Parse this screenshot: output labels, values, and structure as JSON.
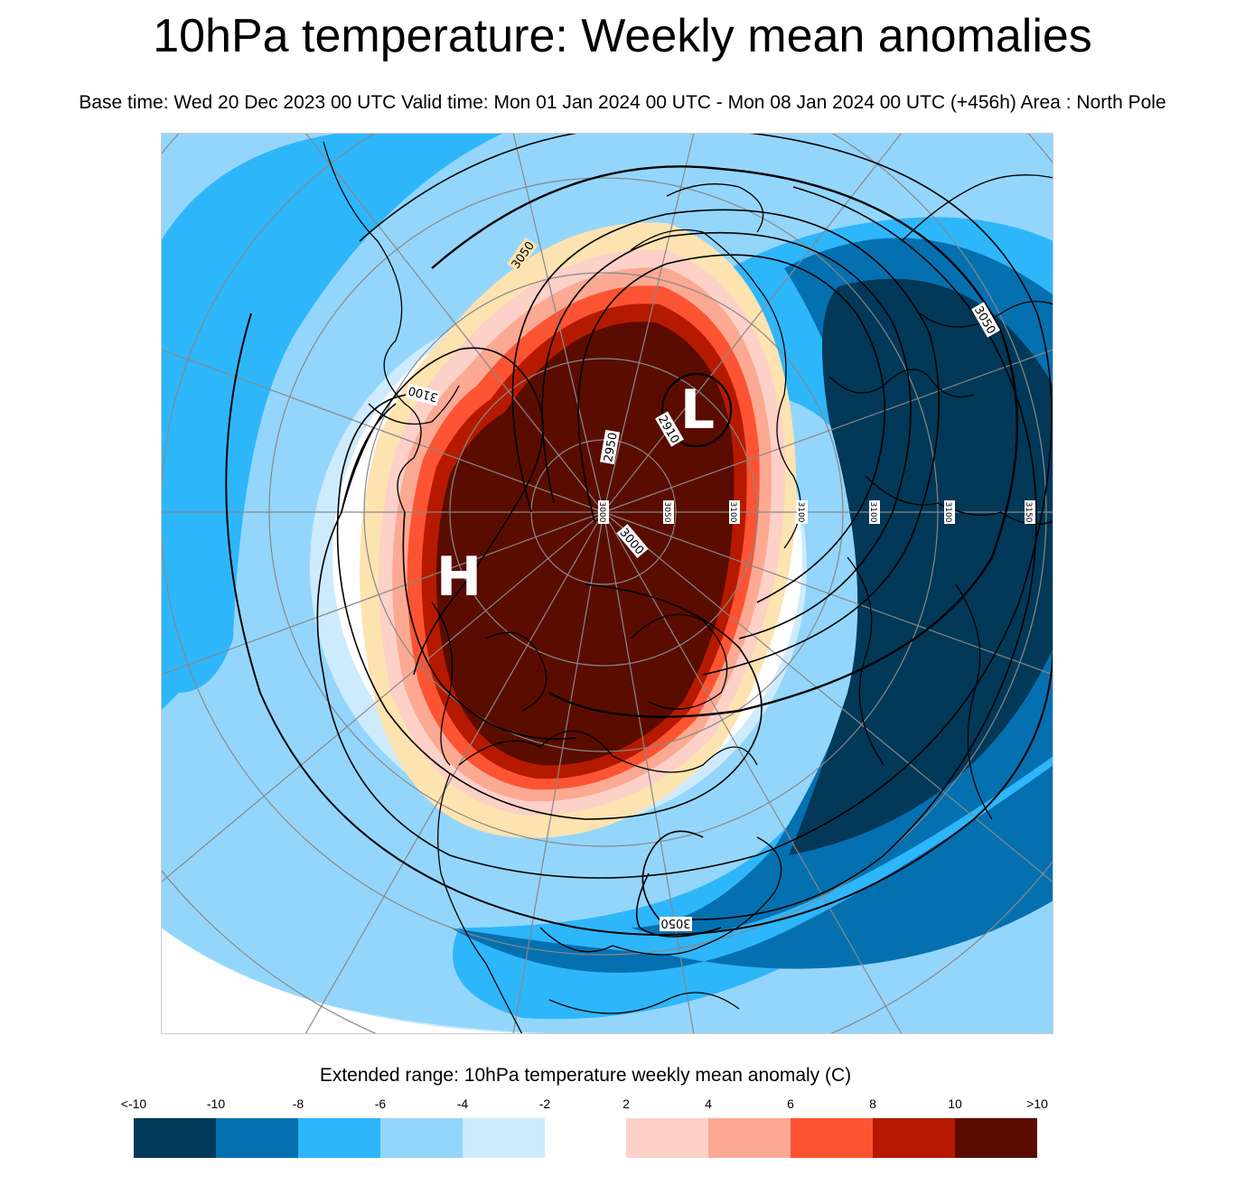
{
  "title": "10hPa temperature: Weekly mean anomalies",
  "subtitle": "Base time: Wed 20 Dec 2023 00 UTC Valid time: Mon 01 Jan 2024 00 UTC - Mon 08 Jan 2024 00 UTC (+456h) Area : North Pole",
  "map": {
    "projection": "polar stereographic, North Pole",
    "markers": {
      "high": "H",
      "low": "L"
    },
    "contour_labels": [
      "3050",
      "3100",
      "2950",
      "2910",
      "3000",
      "3050",
      "3050",
      "3000",
      "3050",
      "3100",
      "3100",
      "3100",
      "3100",
      "3150"
    ]
  },
  "legend": {
    "title": "Extended range: 10hPa temperature weekly mean anomaly (C)",
    "negative_ticks": [
      "<-10",
      "-10",
      "-8",
      "-6",
      "-4",
      "-2"
    ],
    "positive_ticks": [
      "2",
      "4",
      "6",
      "8",
      "10",
      ">10"
    ],
    "negative_colors": [
      "#023858",
      "#0570b0",
      "#2eb6fb",
      "#94d6fb",
      "#cdebfc"
    ],
    "positive_colors": [
      "#fdd0c8",
      "#fca993",
      "#fc5433",
      "#b51a00",
      "#5a0c00"
    ],
    "neutral_color": "#ffffff",
    "warm_band_color": "#fde3b0"
  }
}
